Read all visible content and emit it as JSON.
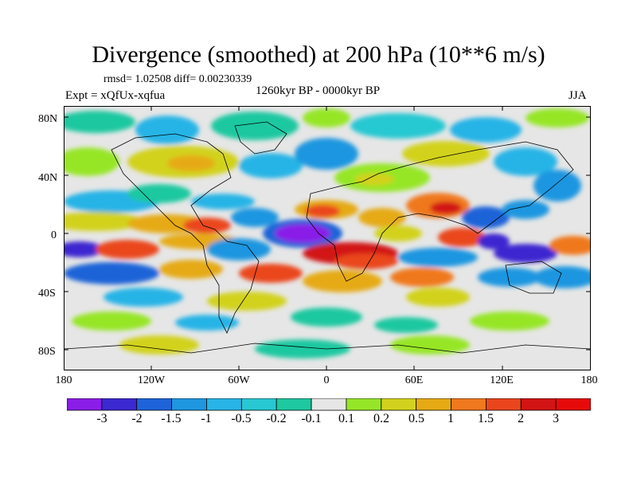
{
  "title": "Divergence (smoothed) at 200 hPa (10**6 m/s)",
  "stats": "rmsd= 1.02508 diff= 0.00230339",
  "expt": "Expt = xQfUx-xqfua",
  "period": "1260kyr BP - 0000kyr BP",
  "season": "JJA",
  "lat_labels": [
    "80N",
    "40N",
    "0",
    "40S",
    "80S"
  ],
  "lon_labels": [
    "180",
    "120W",
    "60W",
    "0",
    "60E",
    "120E",
    "180"
  ],
  "colorbar": {
    "labels": [
      "-3",
      "-2",
      "-1.5",
      "-1",
      "-0.5",
      "-0.2",
      "-0.1",
      "0.1",
      "0.2",
      "0.5",
      "1",
      "1.5",
      "2",
      "3"
    ],
    "colors": [
      "#8a1ee8",
      "#3c28d0",
      "#1e64d8",
      "#1e96e0",
      "#28b4e6",
      "#28c8d2",
      "#1ec8a0",
      "#e6e6e6",
      "#96e628",
      "#d2d21e",
      "#e6aa14",
      "#f0781e",
      "#ea461e",
      "#d21414",
      "#e60a0a"
    ]
  }
}
